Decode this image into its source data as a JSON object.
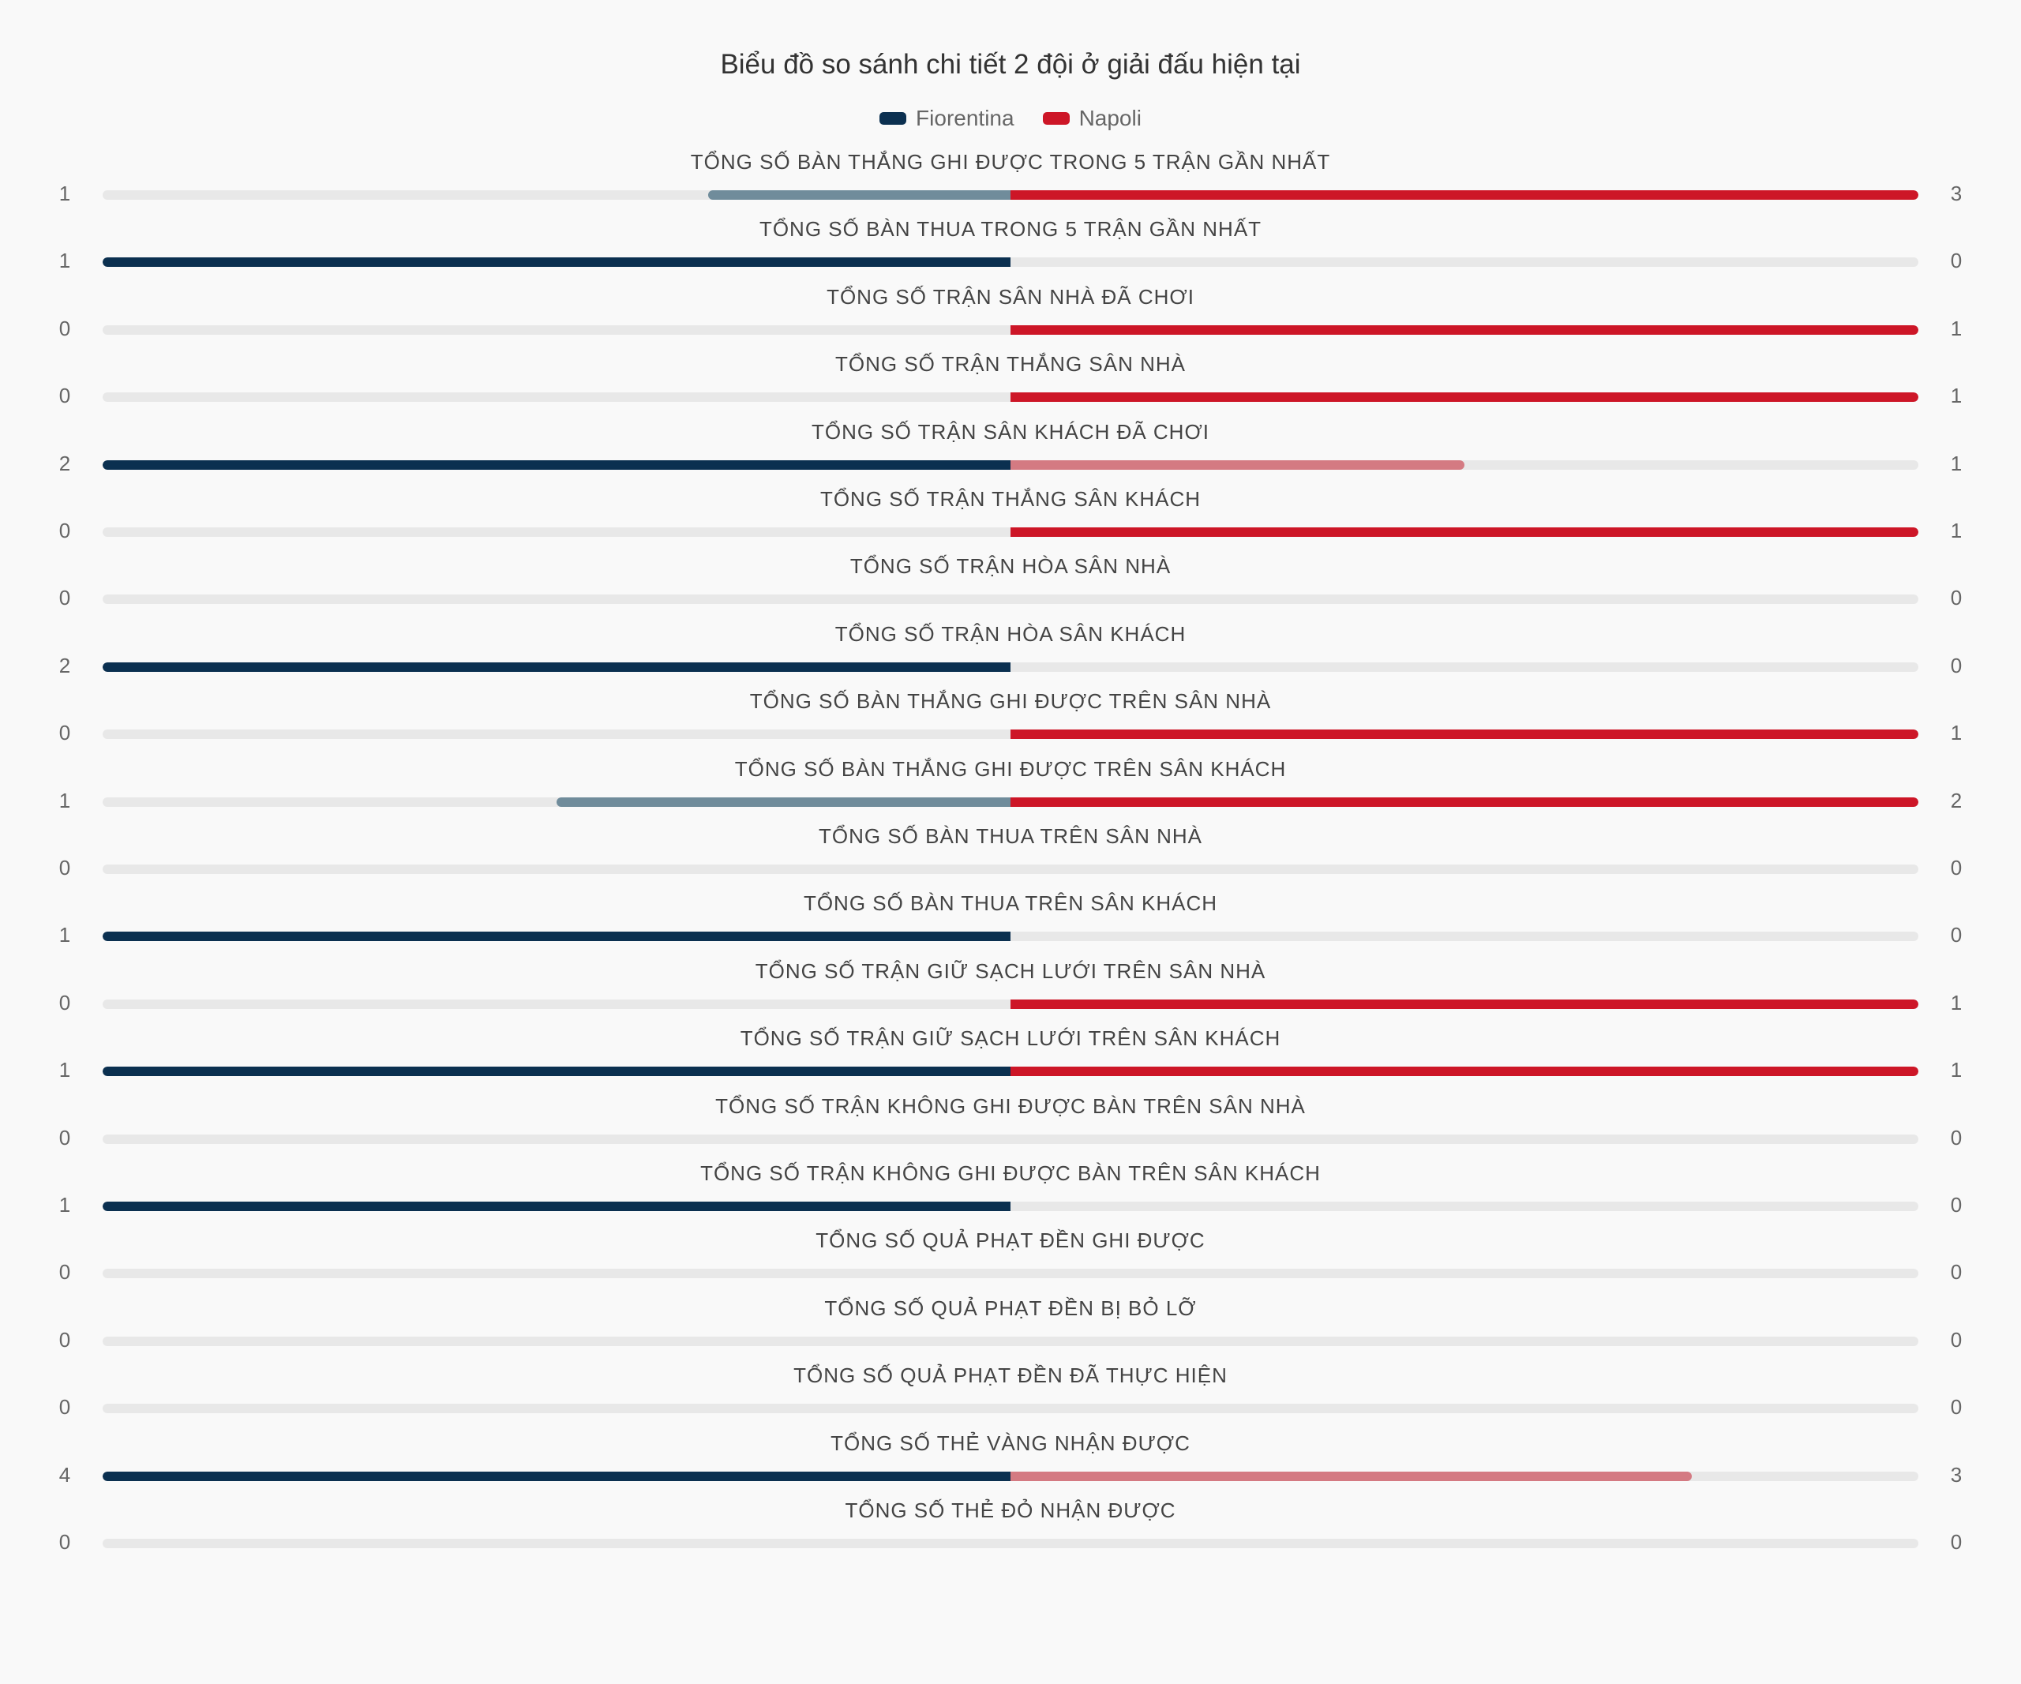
{
  "chart_data": {
    "type": "bar",
    "title": "Biểu đồ so sánh chi tiết 2 đội ở giải đấu hiện tại",
    "legend_position": "top-center",
    "series": [
      {
        "name": "Fiorentina",
        "color": "#0b3050",
        "muted_color": "#708c9b"
      },
      {
        "name": "Napoli",
        "color": "#cd1627",
        "muted_color": "#d47a82"
      }
    ],
    "grid": false,
    "rows": [
      {
        "label": "TỔNG SỐ BÀN THẮNG GHI ĐƯỢC TRONG 5 TRẬN GẦN NHẤT",
        "left": 1,
        "right": 3
      },
      {
        "label": "TỔNG SỐ BÀN THUA TRONG 5 TRẬN GẦN NHẤT",
        "left": 1,
        "right": 0
      },
      {
        "label": "TỔNG SỐ TRẬN SÂN NHÀ ĐÃ CHƠI",
        "left": 0,
        "right": 1
      },
      {
        "label": "TỔNG SỐ TRẬN THẮNG SÂN NHÀ",
        "left": 0,
        "right": 1
      },
      {
        "label": "TỔNG SỐ TRẬN SÂN KHÁCH ĐÃ CHƠI",
        "left": 2,
        "right": 1
      },
      {
        "label": "TỔNG SỐ TRẬN THẮNG SÂN KHÁCH",
        "left": 0,
        "right": 1
      },
      {
        "label": "TỔNG SỐ TRẬN HÒA SÂN NHÀ",
        "left": 0,
        "right": 0
      },
      {
        "label": "TỔNG SỐ TRẬN HÒA SÂN KHÁCH",
        "left": 2,
        "right": 0
      },
      {
        "label": "TỔNG SỐ BÀN THẮNG GHI ĐƯỢC TRÊN SÂN NHÀ",
        "left": 0,
        "right": 1
      },
      {
        "label": "TỔNG SỐ BÀN THẮNG GHI ĐƯỢC TRÊN SÂN KHÁCH",
        "left": 1,
        "right": 2
      },
      {
        "label": "TỔNG SỐ BÀN THUA TRÊN SÂN NHÀ",
        "left": 0,
        "right": 0
      },
      {
        "label": "TỔNG SỐ BÀN THUA TRÊN SÂN KHÁCH",
        "left": 1,
        "right": 0
      },
      {
        "label": "TỔNG SỐ TRẬN GIỮ SẠCH LƯỚI TRÊN SÂN NHÀ",
        "left": 0,
        "right": 1
      },
      {
        "label": "TỔNG SỐ TRẬN GIỮ SẠCH LƯỚI TRÊN SÂN KHÁCH",
        "left": 1,
        "right": 1
      },
      {
        "label": "TỔNG SỐ TRẬN KHÔNG GHI ĐƯỢC BÀN TRÊN SÂN NHÀ",
        "left": 0,
        "right": 0
      },
      {
        "label": "TỔNG SỐ TRẬN KHÔNG GHI ĐƯỢC BÀN TRÊN SÂN KHÁCH",
        "left": 1,
        "right": 0
      },
      {
        "label": "TỔNG SỐ QUẢ PHẠT ĐỀN GHI ĐƯỢC",
        "left": 0,
        "right": 0
      },
      {
        "label": "TỔNG SỐ QUẢ PHẠT ĐỀN BỊ BỎ LỠ",
        "left": 0,
        "right": 0
      },
      {
        "label": "TỔNG SỐ QUẢ PHẠT ĐỀN ĐÃ THỰC HIỆN",
        "left": 0,
        "right": 0
      },
      {
        "label": "TỔNG SỐ THẺ VÀNG NHẬN ĐƯỢC",
        "left": 4,
        "right": 3
      },
      {
        "label": "TỔNG SỐ THẺ ĐỎ NHẬN ĐƯỢC",
        "left": 0,
        "right": 0
      }
    ]
  }
}
